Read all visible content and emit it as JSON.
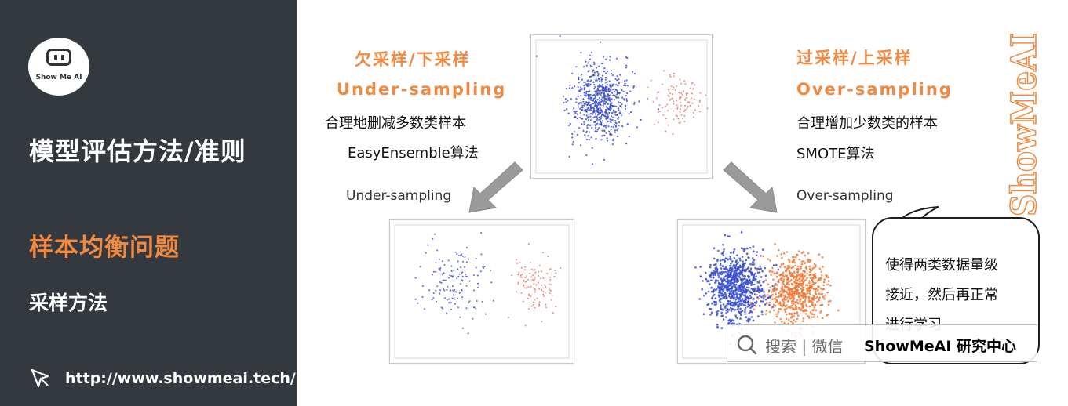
{
  "sidebar": {
    "logo_text": "Show Me AI",
    "title": "模型评估方法/准则",
    "section": "样本均衡问题",
    "subsection": "采样方法",
    "url": "http://www.showmeai.tech/"
  },
  "under": {
    "heading": "欠采样/下采样",
    "english": "Under-sampling",
    "desc": "合理地删减多数类样本",
    "method": "EasyEnsemble算法",
    "arrow_label": "Under-sampling"
  },
  "over": {
    "heading": "过采样/上采样",
    "english": "Over-sampling",
    "desc": "合理增加少数类的样本",
    "method": "SMOTE算法",
    "arrow_label": "Over-sampling"
  },
  "watermark": "ShowMeAI",
  "bubble": {
    "line1": "使得两类数据量级",
    "line2": "接近，然后再正常",
    "line3": "进行学习"
  },
  "search": {
    "text": "搜索 | 微信",
    "brand": "ShowMeAI 研究中心"
  },
  "colors": {
    "sidebar_bg": "#34393f",
    "accent_orange": "#f08a43",
    "majority_blue": "#3a4fd0",
    "minority_red": "#e07a66",
    "oversampled_orange": "#f07b3a"
  }
}
